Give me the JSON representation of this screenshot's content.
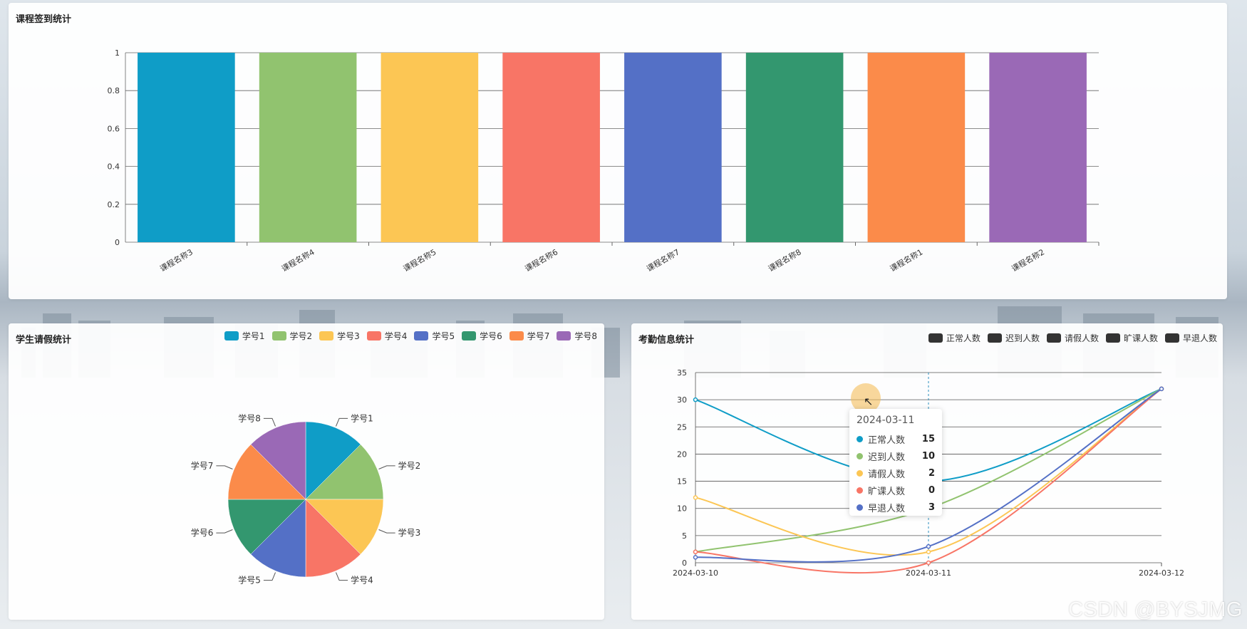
{
  "colors": {
    "palette": [
      "#0f9dc7",
      "#91c36f",
      "#fcc654",
      "#f87566",
      "#5470c6",
      "#33976f",
      "#fb8b4a",
      "#9a69b6"
    ],
    "legend_dark": "#333333"
  },
  "panels": {
    "top_title": "课程签到统计",
    "left_title": "学生请假统计",
    "right_title": "考勤信息统计"
  },
  "chart_data": [
    {
      "type": "bar",
      "title": "课程签到统计",
      "categories": [
        "课程名称3",
        "课程名称4",
        "课程名称5",
        "课程名称6",
        "课程名称7",
        "课程名称8",
        "课程名称1",
        "课程名称2"
      ],
      "values": [
        1,
        1,
        1,
        1,
        1,
        1,
        1,
        1
      ],
      "ylim": [
        0,
        1
      ],
      "yticks": [
        "0",
        "0.2",
        "0.4",
        "0.6",
        "0.8",
        "1"
      ],
      "grid": true
    },
    {
      "type": "pie",
      "title": "学生请假统计",
      "labels": [
        "学号1",
        "学号2",
        "学号3",
        "学号4",
        "学号5",
        "学号6",
        "学号7",
        "学号8"
      ],
      "values": [
        1,
        1,
        1,
        1,
        1,
        1,
        1,
        1
      ],
      "legend": "top-right"
    },
    {
      "type": "line",
      "title": "考勤信息统计",
      "x": [
        "2024-03-10",
        "2024-03-11",
        "2024-03-12"
      ],
      "ylim": [
        0,
        35
      ],
      "yticks": [
        "0",
        "5",
        "10",
        "15",
        "20",
        "25",
        "30",
        "35"
      ],
      "grid": true,
      "legend": "top-right",
      "series": [
        {
          "name": "正常人数",
          "values": [
            30,
            15,
            32
          ]
        },
        {
          "name": "迟到人数",
          "values": [
            2,
            10,
            32
          ]
        },
        {
          "name": "请假人数",
          "values": [
            12,
            2,
            32
          ]
        },
        {
          "name": "旷课人数",
          "values": [
            2,
            0,
            32
          ]
        },
        {
          "name": "早退人数",
          "values": [
            1,
            3,
            32
          ]
        }
      ],
      "tooltip": {
        "date": "2024-03-11",
        "rows": [
          {
            "name": "正常人数",
            "value": "15"
          },
          {
            "name": "迟到人数",
            "value": "10"
          },
          {
            "name": "请假人数",
            "value": "2"
          },
          {
            "name": "旷课人数",
            "value": "0"
          },
          {
            "name": "早退人数",
            "value": "3"
          }
        ]
      }
    }
  ],
  "watermark": "CSDN @BYSJMG"
}
